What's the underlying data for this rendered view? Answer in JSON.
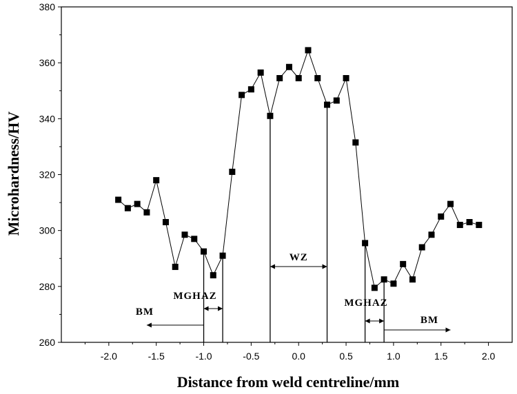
{
  "chart_data": {
    "type": "line",
    "title": "",
    "xlabel": "Distance from weld centreline/mm",
    "ylabel": "Microhardness/HV",
    "xlim": [
      -2.5,
      2.25
    ],
    "ylim": [
      260,
      380
    ],
    "xticks": [
      -2.0,
      -1.5,
      -1.0,
      -0.5,
      0.0,
      0.5,
      1.0,
      1.5,
      2.0
    ],
    "xtick_labels": [
      "-2.0",
      "-1.5",
      "-1.0",
      "-0.5",
      "0.0",
      "0.5",
      "1.0",
      "1.5",
      "2.0"
    ],
    "yticks": [
      260,
      280,
      300,
      320,
      340,
      360,
      380
    ],
    "ytick_labels": [
      "260",
      "280",
      "300",
      "320",
      "340",
      "360",
      "380"
    ],
    "series": [
      {
        "name": "Microhardness",
        "marker": "square",
        "x": [
          -1.9,
          -1.8,
          -1.7,
          -1.6,
          -1.5,
          -1.4,
          -1.3,
          -1.2,
          -1.1,
          -1.0,
          -0.9,
          -0.8,
          -0.7,
          -0.6,
          -0.5,
          -0.4,
          -0.3,
          -0.2,
          -0.1,
          0.0,
          0.1,
          0.2,
          0.3,
          0.4,
          0.5,
          0.6,
          0.7,
          0.8,
          0.9,
          1.0,
          1.1,
          1.2,
          1.3,
          1.4,
          1.5,
          1.6,
          1.7,
          1.8,
          1.9
        ],
        "y": [
          311,
          308,
          309.5,
          306.5,
          318,
          303,
          287,
          298.5,
          297,
          292.5,
          284,
          291,
          321,
          348.5,
          350.5,
          356.5,
          341,
          354.5,
          358.5,
          354.5,
          364.5,
          354.5,
          345,
          346.5,
          354.5,
          331.5,
          295.5,
          279.5,
          282.5,
          281,
          288,
          282.5,
          294,
          298.5,
          305,
          309.5,
          302,
          303,
          302
        ]
      }
    ],
    "zones": [
      {
        "label": "WZ",
        "from": -0.3,
        "to": 0.3
      },
      {
        "label": "MGHAZ",
        "from": -1.0,
        "to": -0.8
      },
      {
        "label": "MGHAZ",
        "from": 0.7,
        "to": 0.9
      },
      {
        "label": "BM",
        "from": -1.0,
        "to": -1.6
      },
      {
        "label": "BM",
        "from": 0.9,
        "to": 1.6
      }
    ]
  }
}
